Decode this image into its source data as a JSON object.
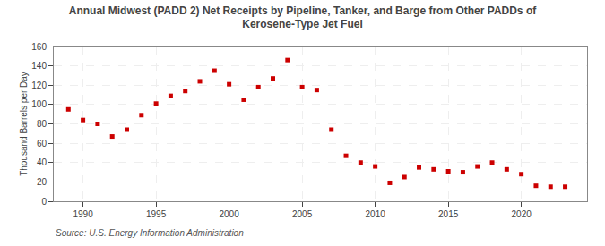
{
  "chart_data": {
    "type": "scatter",
    "title": "Annual Midwest (PADD 2) Net Receipts by Pipeline, Tanker, and Barge from Other PADDs of\nKerosene-Type Jet Fuel",
    "ylabel": "Thousand Barrels per Day",
    "annotations": [
      "Source: U.S. Energy Information Administration"
    ],
    "x": [
      1989,
      1990,
      1991,
      1992,
      1993,
      1994,
      1995,
      1996,
      1997,
      1998,
      1999,
      2000,
      2001,
      2002,
      2003,
      2004,
      2005,
      2006,
      2007,
      2008,
      2009,
      2010,
      2011,
      2012,
      2013,
      2014,
      2015,
      2016,
      2017,
      2018,
      2019,
      2020,
      2021,
      2022,
      2023
    ],
    "values": [
      95,
      84,
      80,
      67,
      74,
      89,
      101,
      109,
      114,
      124,
      135,
      121,
      105,
      118,
      127,
      146,
      118,
      115,
      74,
      47,
      40,
      36,
      19,
      25,
      35,
      33,
      31,
      30,
      36,
      40,
      33,
      28,
      16,
      15,
      15
    ],
    "xlim": [
      1988.0,
      2024.5
    ],
    "ylim": [
      0,
      160
    ],
    "xticks": [
      1990,
      1995,
      2000,
      2005,
      2010,
      2015,
      2020
    ],
    "yticks": [
      0,
      20,
      40,
      60,
      80,
      100,
      120,
      140,
      160
    ],
    "grid": true,
    "color": "#cc0000",
    "marker": "square"
  }
}
